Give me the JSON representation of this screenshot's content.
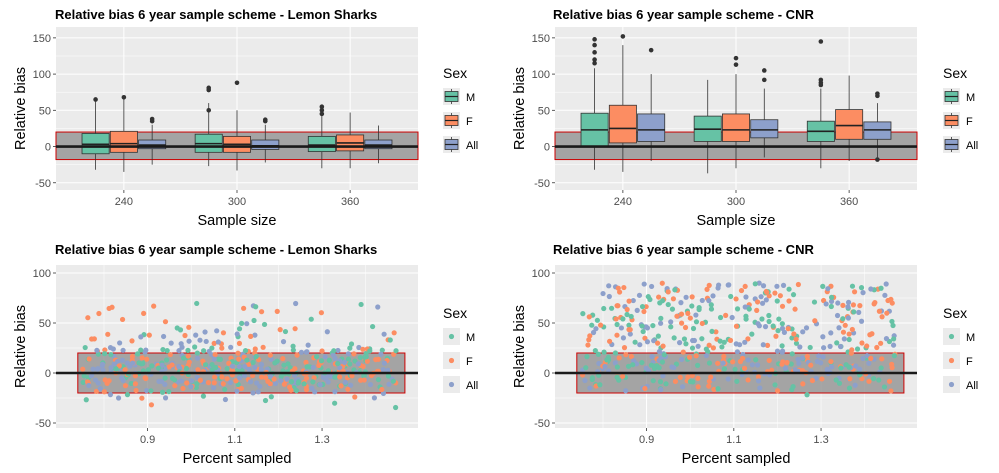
{
  "colors": {
    "M": "#66c2a5",
    "F": "#fc8d62",
    "All": "#8da0cb",
    "panel_bg": "#ebebeb",
    "grid": "#ffffff",
    "band_fill": "#8c8c8c",
    "band_border": "#cc0000",
    "zero_line": "#1a1a1a",
    "outlier": "#333333"
  },
  "legend": {
    "title": "Sex",
    "entries": [
      "M",
      "F",
      "All"
    ]
  },
  "chart_data": [
    {
      "id": "box-lemon",
      "type": "box",
      "title": "Relative bias 6 year sample scheme - Lemon Sharks",
      "xlabel": "Sample size",
      "ylabel": "Relative bias",
      "categories": [
        "240",
        "300",
        "360"
      ],
      "ylim": [
        -60,
        165
      ],
      "yticks": [
        -50,
        0,
        50,
        100,
        150
      ],
      "band": [
        -18,
        20
      ],
      "series": [
        {
          "name": "M",
          "boxes": [
            {
              "low": -32,
              "q1": -10,
              "median": 3,
              "q3": 18,
              "high": 63,
              "outliers": [
                65
              ]
            },
            {
              "low": -27,
              "q1": -8,
              "median": 4,
              "q3": 17,
              "high": 60,
              "outliers": [
                78,
                81,
                50
              ]
            },
            {
              "low": -30,
              "q1": -7,
              "median": 2,
              "q3": 14,
              "high": 42,
              "outliers": [
                45,
                50,
                55
              ]
            }
          ]
        },
        {
          "name": "F",
          "boxes": [
            {
              "low": -35,
              "q1": -8,
              "median": 4,
              "q3": 21,
              "high": 66,
              "outliers": [
                68
              ]
            },
            {
              "low": -33,
              "q1": -8,
              "median": 3,
              "q3": 14,
              "high": 50,
              "outliers": [
                88
              ]
            },
            {
              "low": -30,
              "q1": -6,
              "median": 5,
              "q3": 16,
              "high": 47,
              "outliers": []
            }
          ]
        },
        {
          "name": "All",
          "boxes": [
            {
              "low": -25,
              "q1": -3,
              "median": 2,
              "q3": 9,
              "high": 30,
              "outliers": [
                35,
                38
              ]
            },
            {
              "low": -22,
              "q1": -4,
              "median": 1,
              "q3": 9,
              "high": 30,
              "outliers": [
                35,
                37
              ]
            },
            {
              "low": -23,
              "q1": -3,
              "median": 2,
              "q3": 9,
              "high": 29,
              "outliers": []
            }
          ]
        }
      ]
    },
    {
      "id": "box-cnr",
      "type": "box",
      "title": "Relative bias 6 year sample scheme - CNR",
      "xlabel": "Sample size",
      "ylabel": "Relative bias",
      "categories": [
        "240",
        "300",
        "360"
      ],
      "ylim": [
        -60,
        165
      ],
      "yticks": [
        -50,
        0,
        50,
        100,
        150
      ],
      "band": [
        -18,
        20
      ],
      "series": [
        {
          "name": "M",
          "boxes": [
            {
              "low": -32,
              "q1": 0,
              "median": 23,
              "q3": 46,
              "high": 108,
              "outliers": [
                115,
                120,
                130,
                140,
                148
              ]
            },
            {
              "low": -37,
              "q1": 7,
              "median": 24,
              "q3": 42,
              "high": 92,
              "outliers": []
            },
            {
              "low": -30,
              "q1": 7,
              "median": 21,
              "q3": 35,
              "high": 80,
              "outliers": [
                85,
                88,
                92,
                145
              ]
            }
          ]
        },
        {
          "name": "F",
          "boxes": [
            {
              "low": -35,
              "q1": 5,
              "median": 25,
              "q3": 57,
              "high": 140,
              "outliers": [
                152
              ]
            },
            {
              "low": -30,
              "q1": 7,
              "median": 23,
              "q3": 45,
              "high": 100,
              "outliers": [
                113,
                122
              ]
            },
            {
              "low": -20,
              "q1": 10,
              "median": 29,
              "q3": 51,
              "high": 98,
              "outliers": []
            }
          ]
        },
        {
          "name": "All",
          "boxes": [
            {
              "low": -20,
              "q1": 7,
              "median": 23,
              "q3": 45,
              "high": 100,
              "outliers": [
                133
              ]
            },
            {
              "low": -15,
              "q1": 12,
              "median": 23,
              "q3": 37,
              "high": 80,
              "outliers": [
                92,
                105
              ]
            },
            {
              "low": -15,
              "q1": 10,
              "median": 23,
              "q3": 34,
              "high": 60,
              "outliers": [
                70,
                73,
                -18
              ]
            }
          ]
        }
      ]
    },
    {
      "id": "scatter-lemon",
      "type": "scatter",
      "title": "Relative bias 6 year sample scheme - Lemon Sharks",
      "xlabel": "Percent sampled",
      "ylabel": "Relative bias",
      "xlim": [
        0.69,
        1.52
      ],
      "xticks": [
        0.9,
        1.1,
        1.3
      ],
      "ylim": [
        -55,
        108
      ],
      "yticks": [
        -50,
        0,
        50,
        100
      ],
      "band": [
        -20,
        20
      ],
      "band_x": [
        0.74,
        1.49
      ],
      "points_per_series": 175,
      "series": [
        {
          "name": "M"
        },
        {
          "name": "F"
        },
        {
          "name": "All"
        }
      ]
    },
    {
      "id": "scatter-cnr",
      "type": "scatter",
      "title": "Relative bias 6 year sample scheme - CNR",
      "xlabel": "Percent sampled",
      "ylabel": "Relative bias",
      "xlim": [
        0.69,
        1.52
      ],
      "xticks": [
        0.9,
        1.1,
        1.3
      ],
      "ylim": [
        -55,
        108
      ],
      "yticks": [
        -50,
        0,
        50,
        100
      ],
      "band": [
        -20,
        20
      ],
      "band_x": [
        0.74,
        1.49
      ],
      "points_per_series": 175,
      "series": [
        {
          "name": "M"
        },
        {
          "name": "F"
        },
        {
          "name": "All"
        }
      ]
    }
  ]
}
